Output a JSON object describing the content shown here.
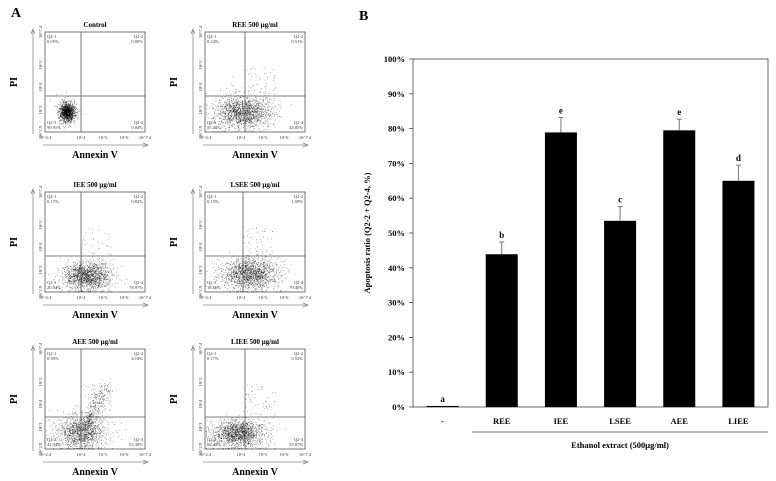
{
  "panel_a": {
    "label": "A",
    "x_axis_label": "Annexin V",
    "y_axis_label": "PI",
    "x_ticks": [
      "10^2.4",
      "10^4",
      "10^5",
      "10^6",
      "10^7.4"
    ],
    "y_ticks": [
      "10^2.9",
      "10^3",
      "10^4",
      "10^5",
      "10^7.4"
    ],
    "plots": [
      {
        "title": "Control",
        "q1": "0.05%",
        "q2": "0.00%",
        "q3": "99.91%",
        "q4": "0.04%"
      },
      {
        "title": "REE 500 μg/ml",
        "q1": "0.24%",
        "q2": "0.51%",
        "q3": "55.20%",
        "q4": "44.05%"
      },
      {
        "title": "IEE 500 μg/ml",
        "q1": "0.17%",
        "q2": "0.82%",
        "q3": "20.04%",
        "q4": "78.97%"
      },
      {
        "title": "LSEE 500 μg/ml",
        "q1": "0.15%",
        "q2": "1.58%",
        "q3": "18.86%",
        "q4": "79.40%"
      },
      {
        "title": "AEE 500 μg/ml",
        "q1": "0.59%",
        "q2": "4.10%",
        "q3": "41.94%",
        "q4": "53.38%"
      },
      {
        "title": "LIEE 500 μg/ml",
        "q1": "0.17%",
        "q2": "0.53%",
        "q3": "63.43%",
        "q4": "35.87%"
      }
    ],
    "quadrant_names": {
      "q1": "Q2-1",
      "q2": "Q2-2",
      "q3": "Q2-3",
      "q4": "Q2-4"
    }
  },
  "chart_data": {
    "type": "bar",
    "panel_label": "B",
    "categories": [
      "-",
      "REE",
      "IEE",
      "LSEE",
      "AEE",
      "LIEE"
    ],
    "values": [
      0.3,
      43.9,
      78.9,
      53.5,
      79.5,
      65.0
    ],
    "error": [
      0,
      3.5,
      4.3,
      4.1,
      3.2,
      4.5
    ],
    "significance": [
      "a",
      "b",
      "e",
      "c",
      "e",
      "d"
    ],
    "ylabel": "Apoptosis ratio (Q2-2 + Q2-4, %)",
    "xlabel": "Ethanol extract (500μg/ml)",
    "ylim": [
      0,
      100
    ],
    "y_ticks": [
      "0%",
      "10%",
      "20%",
      "30%",
      "40%",
      "50%",
      "60%",
      "70%",
      "80%",
      "90%",
      "100%"
    ],
    "bar_color": "#000000",
    "grid": false
  }
}
